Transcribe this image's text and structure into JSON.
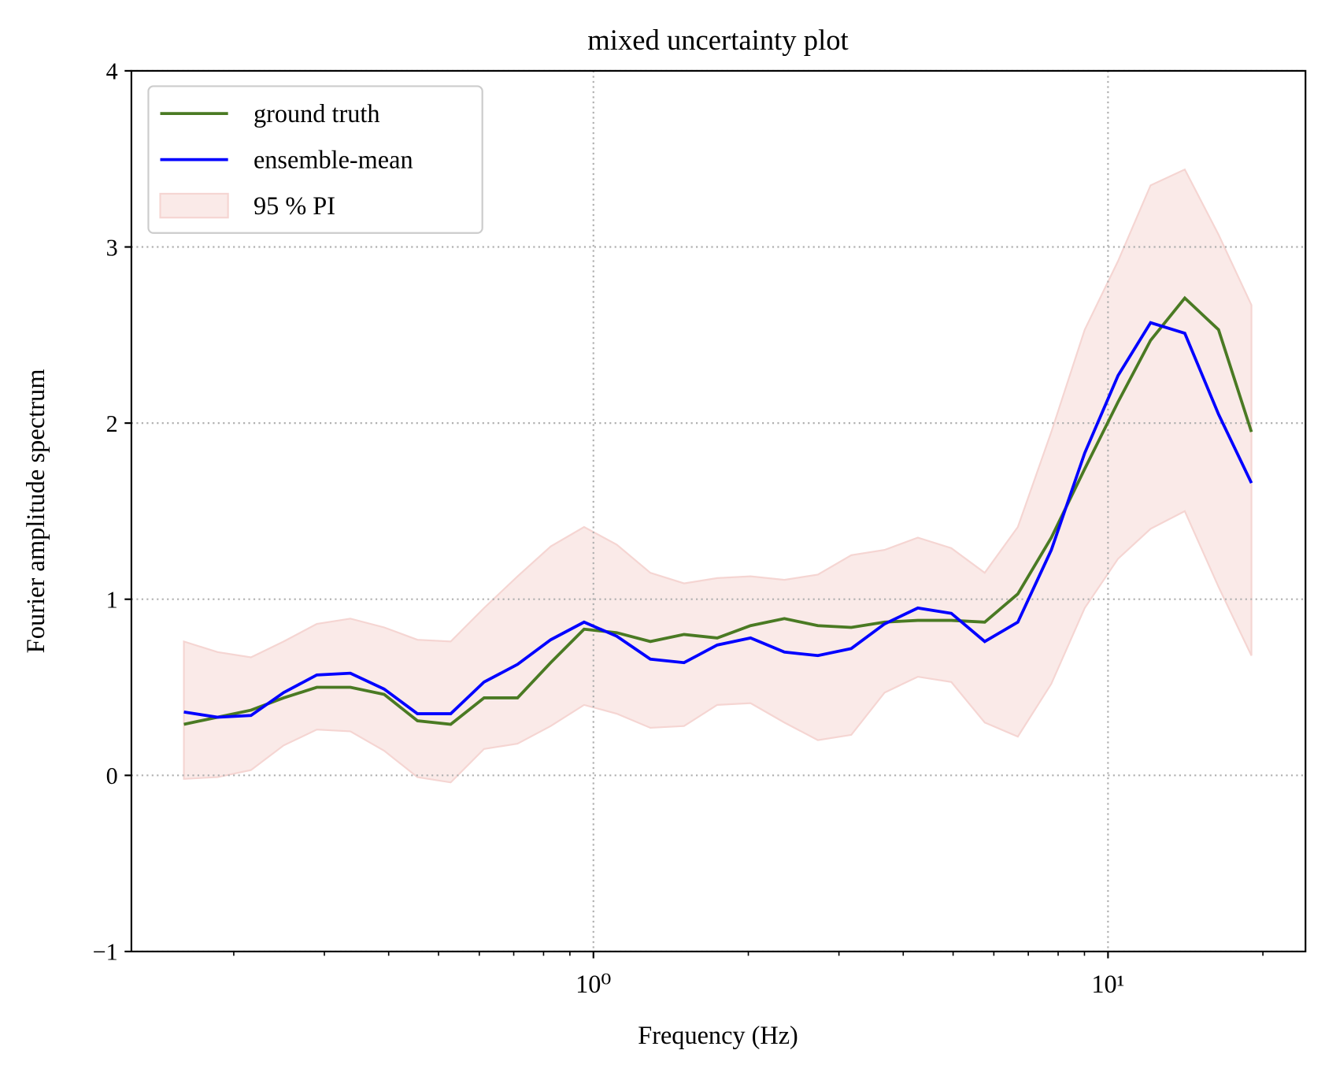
{
  "chart_data": {
    "type": "line",
    "title": "mixed uncertainty plot",
    "xlabel": "Frequency (Hz)",
    "ylabel": "Fourier amplitude spectrum",
    "xscale": "log",
    "xlim": [
      0.1265,
      24.2
    ],
    "ylim": [
      -1,
      4
    ],
    "xticks": [
      {
        "value": 1,
        "label": "10⁰"
      },
      {
        "value": 10,
        "label": "10¹"
      }
    ],
    "xminorticks": [
      0.2,
      0.3,
      0.4,
      0.5,
      0.6,
      0.7,
      0.8,
      0.9,
      2,
      3,
      4,
      5,
      6,
      7,
      8,
      9,
      20
    ],
    "yticks": [
      {
        "value": -1,
        "label": "−1"
      },
      0,
      1,
      2,
      3,
      4
    ],
    "grid": true,
    "legend": "upper left",
    "x": [
      0.16,
      0.186,
      0.216,
      0.25,
      0.29,
      0.337,
      0.392,
      0.455,
      0.528,
      0.613,
      0.712,
      0.826,
      0.959,
      1.11,
      1.29,
      1.5,
      1.74,
      2.02,
      2.35,
      2.73,
      3.17,
      3.68,
      4.27,
      4.96,
      5.76,
      6.68,
      7.76,
      9.01,
      10.46,
      12.1,
      14.1,
      16.4,
      19.0
    ],
    "series": [
      {
        "name": "ground truth",
        "color": "#4a7a23",
        "values": [
          0.29,
          0.33,
          0.37,
          0.44,
          0.5,
          0.5,
          0.46,
          0.31,
          0.29,
          0.44,
          0.44,
          0.64,
          0.83,
          0.81,
          0.76,
          0.8,
          0.78,
          0.85,
          0.89,
          0.85,
          0.84,
          0.87,
          0.88,
          0.88,
          0.87,
          1.03,
          1.35,
          1.74,
          2.12,
          2.47,
          2.71,
          2.53,
          1.95
        ]
      },
      {
        "name": "ensemble-mean",
        "color": "#0000ff",
        "values": [
          0.36,
          0.33,
          0.34,
          0.47,
          0.57,
          0.58,
          0.49,
          0.35,
          0.35,
          0.53,
          0.63,
          0.77,
          0.87,
          0.79,
          0.66,
          0.64,
          0.74,
          0.78,
          0.7,
          0.68,
          0.72,
          0.86,
          0.95,
          0.92,
          0.76,
          0.87,
          1.28,
          1.83,
          2.27,
          2.57,
          2.51,
          2.05,
          1.66
        ]
      }
    ],
    "band": {
      "name": "95 % PI",
      "color": "#f5d5d2",
      "upper": [
        0.76,
        0.7,
        0.67,
        0.76,
        0.86,
        0.89,
        0.84,
        0.77,
        0.76,
        0.95,
        1.13,
        1.3,
        1.41,
        1.31,
        1.15,
        1.09,
        1.12,
        1.13,
        1.11,
        1.14,
        1.25,
        1.28,
        1.35,
        1.29,
        1.15,
        1.41,
        1.95,
        2.53,
        2.92,
        3.35,
        3.44,
        3.07,
        2.67
      ],
      "lower": [
        -0.02,
        -0.01,
        0.03,
        0.17,
        0.26,
        0.25,
        0.14,
        -0.01,
        -0.04,
        0.15,
        0.18,
        0.28,
        0.4,
        0.35,
        0.27,
        0.28,
        0.4,
        0.41,
        0.3,
        0.2,
        0.23,
        0.47,
        0.56,
        0.53,
        0.3,
        0.22,
        0.52,
        0.95,
        1.23,
        1.4,
        1.5,
        1.07,
        0.68
      ]
    }
  }
}
